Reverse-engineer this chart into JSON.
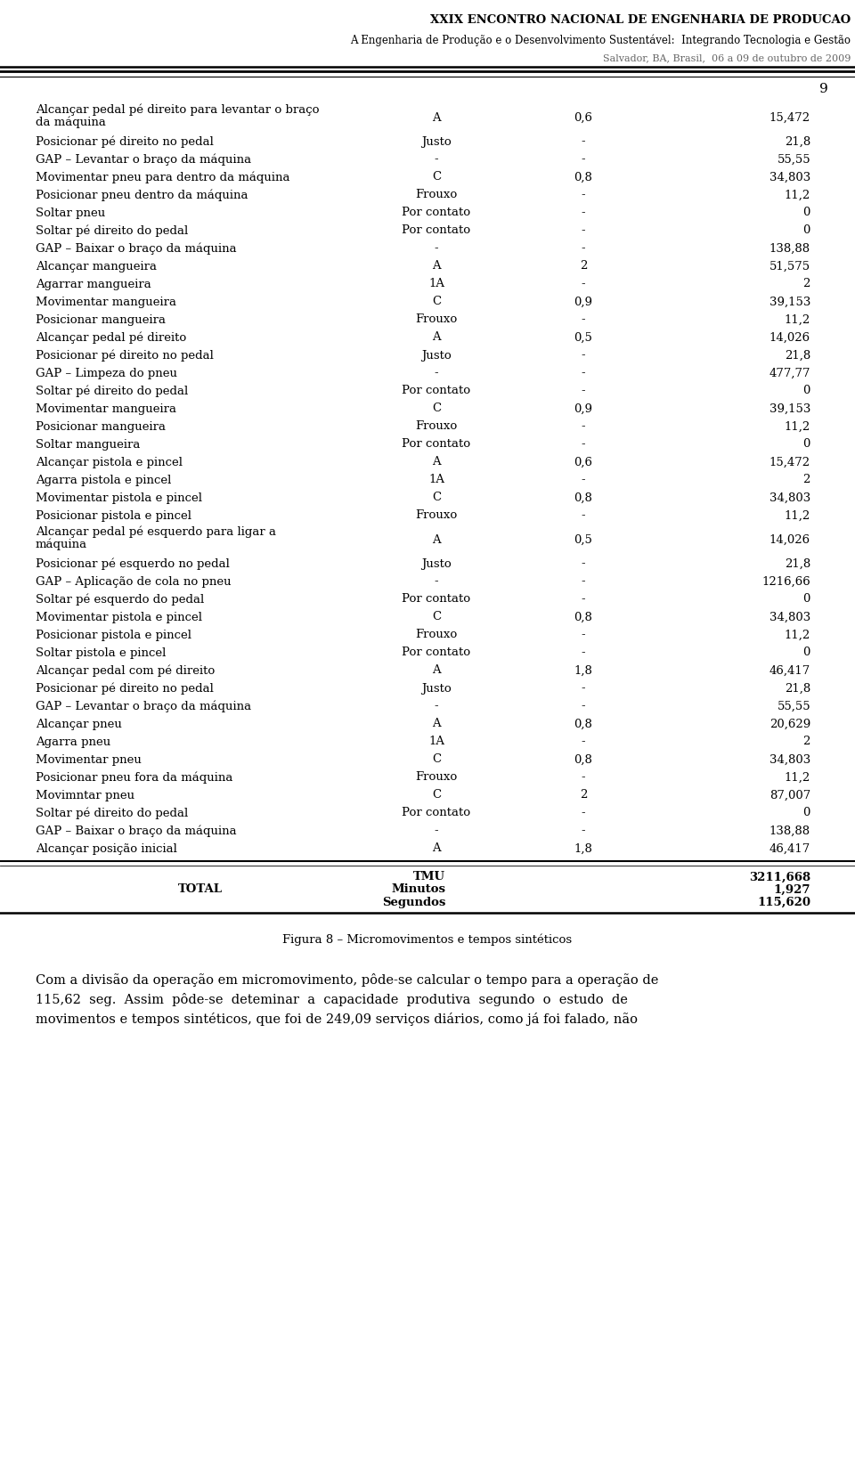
{
  "header_title": "XXIX ENCONTRO NACIONAL DE ENGENHARIA DE PRODUCAO",
  "header_subtitle": "A Engenharia de Produção e o Desenvolvimento Sustentável:  Integrando Tecnologia e Gestão",
  "header_location": "Salvador, BA, Brasil,  06 a 09 de outubro de 2009",
  "page_number": "9",
  "table_rows": [
    {
      "desc": "Alcançar pedal pé direito para levantar o braço\nda máquina",
      "col2": "A",
      "col3": "0,6",
      "col4": "15,472",
      "two_line": true
    },
    {
      "desc": "Posicionar pé direito no pedal",
      "col2": "Justo",
      "col3": "-",
      "col4": "21,8",
      "two_line": false
    },
    {
      "desc": "GAP – Levantar o braço da máquina",
      "col2": "-",
      "col3": "-",
      "col4": "55,55",
      "two_line": false
    },
    {
      "desc": "Movimentar pneu para dentro da máquina",
      "col2": "C",
      "col3": "0,8",
      "col4": "34,803",
      "two_line": false
    },
    {
      "desc": "Posicionar pneu dentro da máquina",
      "col2": "Frouxo",
      "col3": "-",
      "col4": "11,2",
      "two_line": false
    },
    {
      "desc": "Soltar pneu",
      "col2": "Por contato",
      "col3": "-",
      "col4": "0",
      "two_line": false
    },
    {
      "desc": "Soltar pé direito do pedal",
      "col2": "Por contato",
      "col3": "-",
      "col4": "0",
      "two_line": false
    },
    {
      "desc": "GAP – Baixar o braço da máquina",
      "col2": "-",
      "col3": "-",
      "col4": "138,88",
      "two_line": false
    },
    {
      "desc": "Alcançar mangueira",
      "col2": "A",
      "col3": "2",
      "col4": "51,575",
      "two_line": false
    },
    {
      "desc": "Agarrar mangueira",
      "col2": "1A",
      "col3": "-",
      "col4": "2",
      "two_line": false
    },
    {
      "desc": "Movimentar mangueira",
      "col2": "C",
      "col3": "0,9",
      "col4": "39,153",
      "two_line": false
    },
    {
      "desc": "Posicionar mangueira",
      "col2": "Frouxo",
      "col3": "-",
      "col4": "11,2",
      "two_line": false
    },
    {
      "desc": "Alcançar pedal pé direito",
      "col2": "A",
      "col3": "0,5",
      "col4": "14,026",
      "two_line": false
    },
    {
      "desc": "Posicionar pé direito no pedal",
      "col2": "Justo",
      "col3": "-",
      "col4": "21,8",
      "two_line": false
    },
    {
      "desc": "GAP – Limpeza do pneu",
      "col2": "-",
      "col3": "-",
      "col4": "477,77",
      "two_line": false
    },
    {
      "desc": "Soltar pé direito do pedal",
      "col2": "Por contato",
      "col3": "-",
      "col4": "0",
      "two_line": false
    },
    {
      "desc": "Movimentar mangueira",
      "col2": "C",
      "col3": "0,9",
      "col4": "39,153",
      "two_line": false
    },
    {
      "desc": "Posicionar mangueira",
      "col2": "Frouxo",
      "col3": "-",
      "col4": "11,2",
      "two_line": false
    },
    {
      "desc": "Soltar mangueira",
      "col2": "Por contato",
      "col3": "-",
      "col4": "0",
      "two_line": false
    },
    {
      "desc": "Alcançar pistola e pincel",
      "col2": "A",
      "col3": "0,6",
      "col4": "15,472",
      "two_line": false
    },
    {
      "desc": "Agarra pistola e pincel",
      "col2": "1A",
      "col3": "-",
      "col4": "2",
      "two_line": false
    },
    {
      "desc": "Movimentar pistola e pincel",
      "col2": "C",
      "col3": "0,8",
      "col4": "34,803",
      "two_line": false
    },
    {
      "desc": "Posicionar pistola e pincel",
      "col2": "Frouxo",
      "col3": "-",
      "col4": "11,2",
      "two_line": false
    },
    {
      "desc": "Alcançar pedal pé esquerdo para ligar a\nmáquina",
      "col2": "A",
      "col3": "0,5",
      "col4": "14,026",
      "two_line": true
    },
    {
      "desc": "Posicionar pé esquerdo no pedal",
      "col2": "Justo",
      "col3": "-",
      "col4": "21,8",
      "two_line": false
    },
    {
      "desc": "GAP – Aplicação de cola no pneu",
      "col2": "-",
      "col3": "-",
      "col4": "1216,66",
      "two_line": false
    },
    {
      "desc": "Soltar pé esquerdo do pedal",
      "col2": "Por contato",
      "col3": "-",
      "col4": "0",
      "two_line": false
    },
    {
      "desc": "Movimentar pistola e pincel",
      "col2": "C",
      "col3": "0,8",
      "col4": "34,803",
      "two_line": false
    },
    {
      "desc": "Posicionar pistola e pincel",
      "col2": "Frouxo",
      "col3": "-",
      "col4": "11,2",
      "two_line": false
    },
    {
      "desc": "Soltar pistola e pincel",
      "col2": "Por contato",
      "col3": "-",
      "col4": "0",
      "two_line": false
    },
    {
      "desc": "Alcançar pedal com pé direito",
      "col2": "A",
      "col3": "1,8",
      "col4": "46,417",
      "two_line": false
    },
    {
      "desc": "Posicionar pé direito no pedal",
      "col2": "Justo",
      "col3": "-",
      "col4": "21,8",
      "two_line": false
    },
    {
      "desc": "GAP – Levantar o braço da máquina",
      "col2": "-",
      "col3": "-",
      "col4": "55,55",
      "two_line": false
    },
    {
      "desc": "Alcançar pneu",
      "col2": "A",
      "col3": "0,8",
      "col4": "20,629",
      "two_line": false
    },
    {
      "desc": "Agarra pneu",
      "col2": "1A",
      "col3": "-",
      "col4": "2",
      "two_line": false
    },
    {
      "desc": "Movimentar pneu",
      "col2": "C",
      "col3": "0,8",
      "col4": "34,803",
      "two_line": false
    },
    {
      "desc": "Posicionar pneu fora da máquina",
      "col2": "Frouxo",
      "col3": "-",
      "col4": "11,2",
      "two_line": false
    },
    {
      "desc": "Movimntar pneu",
      "col2": "C",
      "col3": "2",
      "col4": "87,007",
      "two_line": false
    },
    {
      "desc": "Soltar pé direito do pedal",
      "col2": "Por contato",
      "col3": "-",
      "col4": "0",
      "two_line": false
    },
    {
      "desc": "GAP – Baixar o braço da máquina",
      "col2": "-",
      "col3": "-",
      "col4": "138,88",
      "two_line": false
    },
    {
      "desc": "Alcançar posição inicial",
      "col2": "A",
      "col3": "1,8",
      "col4": "46,417",
      "two_line": false
    }
  ],
  "total_label": "TOTAL",
  "tmu_label": "TMU",
  "tmu_value": "3211,668",
  "minutos_label": "Minutos",
  "minutos_value": "1,927",
  "segundos_label": "Segundos",
  "segundos_value": "115,620",
  "caption": "Figura 8 – Micromovimentos e tempos sintéticos",
  "body_text_1": "Com a divisão da operação em micromovimento, pôde-se calcular o tempo para a operação de",
  "body_text_2": "115,62  seg.  Assim  pôde-se  deteminar  a  capacidade  produtiva  segundo  o  estudo  de",
  "body_text_3": "movimentos e tempos sintéticos, que foi de 249,09 serviços diários, como já foi falado, não",
  "bg_color": "#ffffff",
  "text_color": "#000000"
}
